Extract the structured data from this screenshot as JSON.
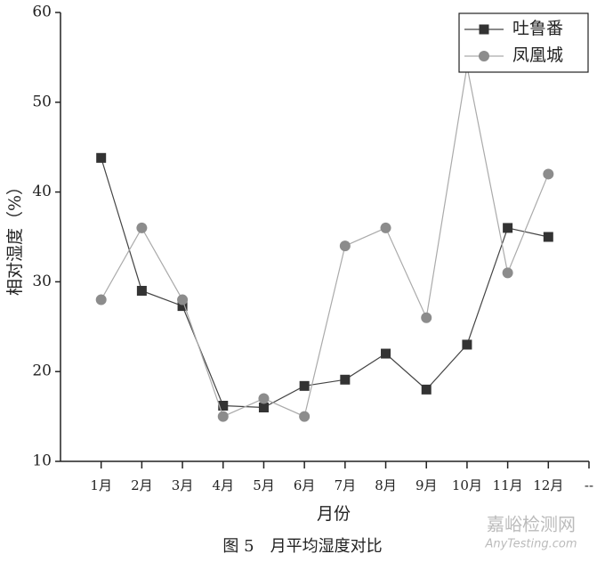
{
  "chart_data": {
    "type": "line",
    "x": [
      1,
      2,
      3,
      4,
      5,
      6,
      7,
      8,
      9,
      10,
      11,
      12
    ],
    "xlim": [
      0,
      13
    ],
    "xticks": [
      {
        "value": 1,
        "label": "1月"
      },
      {
        "value": 2,
        "label": "2月"
      },
      {
        "value": 3,
        "label": "3月"
      },
      {
        "value": 4,
        "label": "4月"
      },
      {
        "value": 5,
        "label": "5月"
      },
      {
        "value": 6,
        "label": "6月"
      },
      {
        "value": 7,
        "label": "7月"
      },
      {
        "value": 8,
        "label": "8月"
      },
      {
        "value": 9,
        "label": "9月"
      },
      {
        "value": 10,
        "label": "10月"
      },
      {
        "value": 11,
        "label": "11月"
      },
      {
        "value": 12,
        "label": "12月"
      },
      {
        "value": 13,
        "label": "--"
      }
    ],
    "ylim": [
      10,
      60
    ],
    "yticks": [
      10,
      20,
      30,
      40,
      50,
      60
    ],
    "xlabel": "月份",
    "ylabel": "相对湿度（%）",
    "caption": "图 5　月平均湿度对比",
    "watermark": [
      "嘉峪检测网",
      "AnyTesting.com"
    ],
    "legend": "top-right",
    "series": [
      {
        "name": "吐鲁番",
        "color": "#333333",
        "line_color": "#444444",
        "marker": "square",
        "values": [
          43.8,
          29,
          27.3,
          16.2,
          16,
          18.4,
          19.1,
          22,
          18,
          23,
          36,
          35
        ]
      },
      {
        "name": "凤凰城",
        "color": "#8c8c8c",
        "line_color": "#aaaaaa",
        "marker": "circle",
        "values": [
          28,
          36,
          28,
          15,
          17,
          15,
          34,
          36,
          26,
          54,
          31,
          42
        ]
      }
    ]
  }
}
